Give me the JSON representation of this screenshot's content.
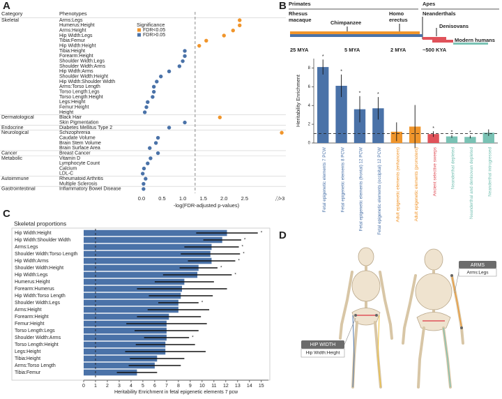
{
  "panel_labels": [
    "A",
    "B",
    "C",
    "D"
  ],
  "chart_data": [
    {
      "type": "dot",
      "column_headers": [
        "Category",
        "Phenotypes"
      ],
      "legend_title": "Significance",
      "categories": [
        "Arms:Legs",
        "Humerus:Height",
        "Arms:Height",
        "Hip Width:Legs",
        "Tibia:Femur",
        "Hip Width:Height",
        "Tibia:Height",
        "Forearm:Height",
        "Shoulder Width:Legs",
        "Shoulder Width:Arms",
        "Hip Width:Arms",
        "Shoulder Width:Height",
        "Hip Width:Shoulder Width",
        "Arms:Torso Length",
        "Torso Length:Legs",
        "Torso Length:Height",
        "Legs:Height",
        "Femur:Height",
        "Height",
        "Black Hair",
        "Skin Pigmentation",
        "Diabetes Mellitus Type 2",
        "Schizophrenia",
        "Caudate Volume",
        "Brain Stem Volume",
        "Brain Surface Area",
        "Breast Cancer",
        "Vitamin D",
        "Lymphocyte Count",
        "Calcium",
        "LDL-C",
        "Rheumatoid Arthritis",
        "Multiple Sclerosis",
        "Inflammatory Bowel Disease"
      ],
      "groups": [
        "Skeletal",
        null,
        null,
        null,
        null,
        null,
        null,
        null,
        null,
        null,
        null,
        null,
        null,
        null,
        null,
        null,
        null,
        null,
        null,
        "Dermatological",
        null,
        "Endocrine",
        "Neurological",
        null,
        null,
        null,
        "Cancer",
        "Metabolic",
        null,
        null,
        null,
        "Autoimmune",
        null,
        "Gastrointestinal"
      ],
      "series": [
        {
          "name": "FDR<0.05",
          "color": "#f0952b",
          "values": [
            2.38,
            2.38,
            2.22,
            2.0,
            1.57,
            1.4,
            null,
            null,
            null,
            null,
            null,
            null,
            null,
            null,
            null,
            null,
            null,
            null,
            null,
            1.9,
            null,
            null,
            3.4,
            null,
            null,
            null,
            null,
            null,
            null,
            null,
            null,
            null,
            null,
            null
          ]
        },
        {
          "name": "FDR>0.05",
          "color": "#4a72a8",
          "values": [
            null,
            null,
            null,
            null,
            null,
            null,
            1.05,
            1.05,
            1.0,
            0.92,
            0.67,
            0.47,
            0.37,
            0.3,
            0.3,
            0.27,
            0.15,
            0.12,
            0.08,
            null,
            1.05,
            0.67,
            null,
            0.4,
            0.35,
            0.2,
            0.4,
            0.22,
            0.15,
            0.06,
            0.03,
            0.1,
            0.05,
            0.05
          ]
        }
      ],
      "xlim": [
        -0.1,
        3.5
      ],
      "xticks": [
        {
          "value": 0,
          "label": "0.0"
        },
        0.5,
        {
          "value": 1,
          "label": "1.0"
        },
        1.5,
        {
          "value": 2,
          "label": "2.0"
        },
        2.5,
        {
          "value": 3.4,
          "label": ">3"
        }
      ],
      "reference_line": 1.3,
      "xlabel": "-log(FDR-adjusted p-values)"
    },
    {
      "type": "bar",
      "ylabel": "Heritability Enrichment",
      "categories": [
        "Fetal epigenetic elements 7 PCW",
        "Fetal epigenetic elements 8 PCW",
        "Fetal epigenetic elements (frontal) 12 PCW",
        "Fetal epigenetic elements (occipital) 12 PCW",
        "Adult epigenetic elements (enhancers)",
        "Adult epigenetic elements (promoters)",
        "Ancient selective sweeps",
        "Neanderthal depleted",
        "Neanderthal and denisovan depleted",
        "Neanderthal introgressed"
      ],
      "values": [
        8.1,
        6.1,
        3.6,
        3.7,
        1.2,
        1.75,
        0.95,
        0.7,
        0.65,
        1.1
      ],
      "errors": [
        0.8,
        1.2,
        1.4,
        1.2,
        1.0,
        2.3,
        0.3,
        0.15,
        0.15,
        0.35
      ],
      "annotations": [
        "*",
        "*",
        "*",
        "*",
        null,
        null,
        "*",
        "*",
        "*",
        null
      ],
      "colors": [
        "#4a72a8",
        "#4a72a8",
        "#4a72a8",
        "#4a72a8",
        "#f0952b",
        "#f0952b",
        "#e0525a",
        "#79c2b4",
        "#79c2b4",
        "#79c2b4"
      ],
      "ylim": [
        0,
        9
      ],
      "yticks": [
        0,
        2,
        4,
        6,
        8
      ],
      "reference_line": 1
    },
    {
      "type": "hbar",
      "title": "Skeletal proportions",
      "color": "#4a72a8",
      "categories": [
        "Hip Width:Height",
        "Hip Width:Shoulder Width",
        "Arms:Legs",
        "Shoulder Width:Torso Length",
        "Hip Width:Arms",
        "Shoulder Width:Height",
        "Hip Width:Legs",
        "Humerus:Height",
        "Forearm:Humerus",
        "Hip Width:Torso Length",
        "Shoulder Width:Legs",
        "Arms:Height",
        "Forearm:Height",
        "Femur:Height",
        "Torso Length:Legs",
        "Shoulder Width:Arms",
        "Torso Length:Height",
        "Legs:Height",
        "Tibia:Height",
        "Arms:Torso Length",
        "Tibia:Femur"
      ],
      "values": [
        12.1,
        11.7,
        10.8,
        10.7,
        10.8,
        9.7,
        9.6,
        8.5,
        8.3,
        8.2,
        8.0,
        8.0,
        7.2,
        7.0,
        7.0,
        7.0,
        6.9,
        6.9,
        6.2,
        6.0,
        4.5
      ],
      "errors": [
        2.6,
        1.6,
        2.3,
        2.5,
        2.0,
        1.6,
        2.9,
        2.5,
        3.8,
        2.7,
        1.7,
        2.6,
        2.7,
        3.4,
        2.7,
        1.9,
        2.5,
        3.4,
        2.3,
        2.2,
        1.7
      ],
      "annotations": [
        "*",
        "*",
        "*",
        "*",
        "*",
        "*",
        "*",
        null,
        null,
        null,
        "*",
        null,
        null,
        null,
        null,
        "*",
        null,
        null,
        null,
        null,
        null
      ],
      "xlim": [
        0,
        15.6
      ],
      "xticks": [
        0,
        1,
        2,
        3,
        4,
        5,
        6,
        7,
        8,
        9,
        10,
        11,
        12,
        13,
        14,
        15
      ],
      "reference_line": 1,
      "xlabel": "Heritability Enrichment in fetal epigenetic elements 7 pcw"
    }
  ],
  "timeline": {
    "groups": [
      "Primates",
      "Apes"
    ],
    "species": [
      [
        "Rhesus",
        "macaque"
      ],
      [
        "Chimpanzee"
      ],
      [
        "Homo",
        "erectus"
      ],
      [
        "Neanderthals"
      ],
      [
        "Denisovans"
      ],
      [
        "Modern humans"
      ]
    ],
    "times": [
      "25 MYA",
      "5 MYA",
      "2 MYA",
      "~500 KYA"
    ]
  },
  "diagram": {
    "labels": [
      {
        "title": "ARMS",
        "subtitle": "Arms:Legs"
      },
      {
        "title": "HIP WIDTH",
        "subtitle": "Hip Width:Height"
      }
    ]
  }
}
